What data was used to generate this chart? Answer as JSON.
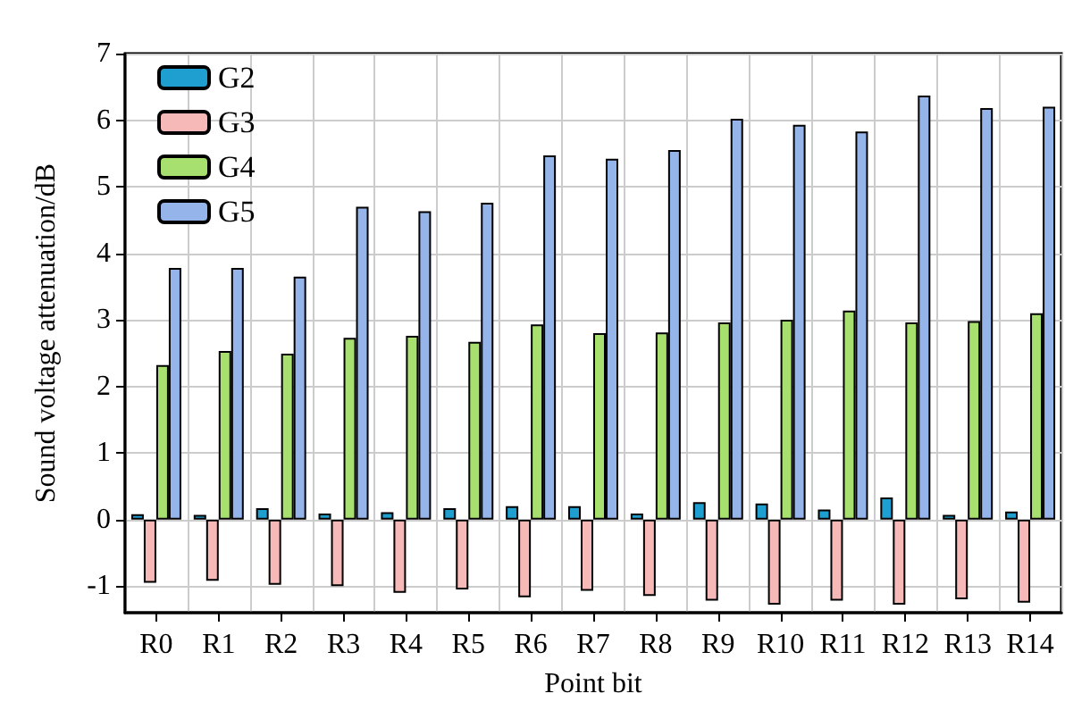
{
  "chart_data": {
    "type": "bar",
    "xlabel": "Point bit",
    "ylabel": "Sound voltage attenuation/dB",
    "categories": [
      "R0",
      "R1",
      "R2",
      "R3",
      "R4",
      "R5",
      "R6",
      "R7",
      "R8",
      "R9",
      "R10",
      "R11",
      "R12",
      "R13",
      "R14"
    ],
    "series": [
      {
        "name": "G2",
        "color": "#1f9fd0",
        "values": [
          0.08,
          0.07,
          0.17,
          0.09,
          0.11,
          0.17,
          0.2,
          0.2,
          0.09,
          0.26,
          0.24,
          0.15,
          0.33,
          0.07,
          0.12
        ]
      },
      {
        "name": "G3",
        "color": "#f7b8b8",
        "values": [
          -0.95,
          -0.92,
          -0.98,
          -1.0,
          -1.1,
          -1.05,
          -1.17,
          -1.07,
          -1.15,
          -1.22,
          -1.28,
          -1.22,
          -1.28,
          -1.2,
          -1.25
        ]
      },
      {
        "name": "G4",
        "color": "#a8e070",
        "values": [
          2.32,
          2.53,
          2.49,
          2.73,
          2.76,
          2.67,
          2.93,
          2.8,
          2.81,
          2.96,
          3.0,
          3.14,
          2.96,
          2.98,
          3.1
        ]
      },
      {
        "name": "G5",
        "color": "#94b4ea",
        "values": [
          3.78,
          3.78,
          3.65,
          4.7,
          4.63,
          4.76,
          5.47,
          5.42,
          5.55,
          6.02,
          5.93,
          5.83,
          6.37,
          6.18,
          6.2
        ]
      }
    ],
    "ylim": [
      -1.4,
      7
    ],
    "yticks": [
      -1,
      0,
      1,
      2,
      3,
      4,
      5,
      6,
      7
    ],
    "grid": true,
    "legend": "top left"
  }
}
